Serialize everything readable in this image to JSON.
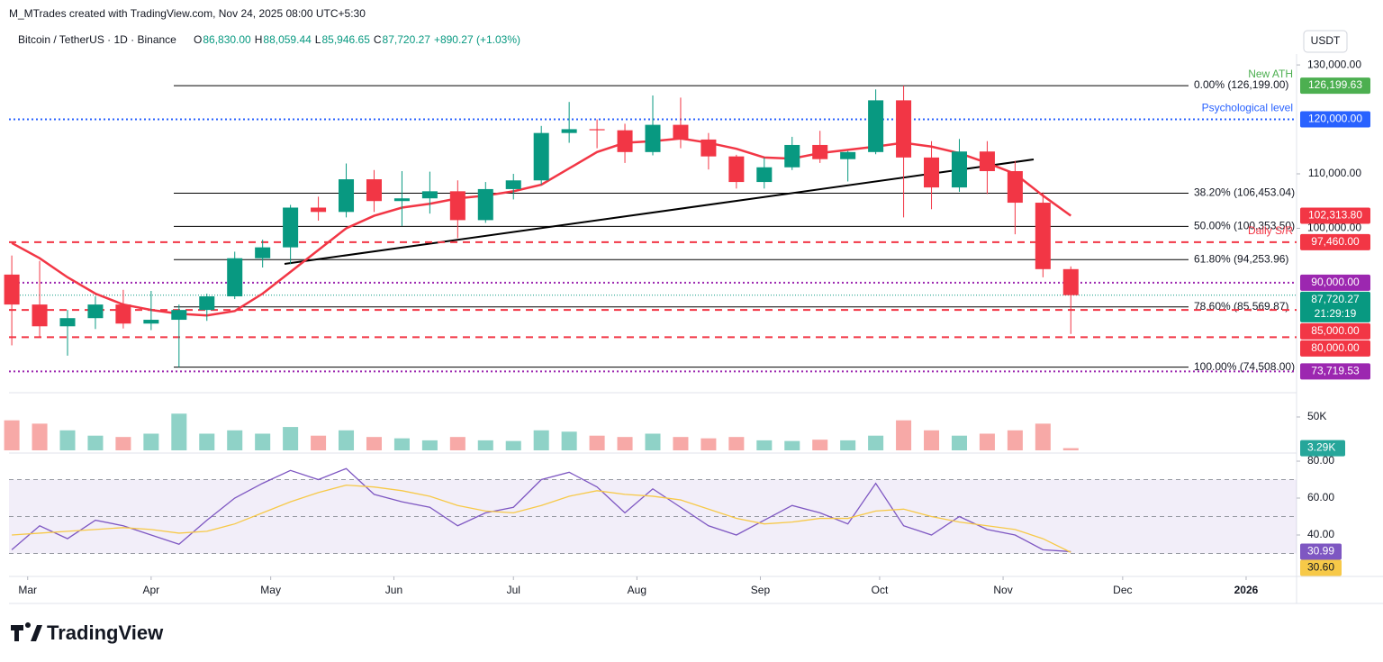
{
  "header": {
    "credit": "M_MTrades created with TradingView.com, Nov 24, 2025 08:00 UTC+5:30",
    "symbol": "Bitcoin / TetherUS · 1D · Binance",
    "ohlc": [
      {
        "key": "O",
        "value": "86,830.00"
      },
      {
        "key": "H",
        "value": "88,059.44"
      },
      {
        "key": "L",
        "value": "85,946.65"
      },
      {
        "key": "C",
        "value": "87,720.27"
      }
    ],
    "change": "+890.27 (+1.03%)",
    "currency": "USDT",
    "logo": "TradingView"
  },
  "chart_data": [
    {
      "type": "candlestick",
      "up_color": "#089981",
      "down_color": "#f23645",
      "open": [
        91500,
        86000,
        82000,
        83500,
        86000,
        82500,
        83200,
        85000,
        87500,
        94500,
        96500,
        103800,
        103000,
        109000,
        105000,
        105500,
        106800,
        101500,
        107200,
        108800,
        117500,
        118200,
        118000,
        114000,
        119000,
        116300,
        113200,
        108500,
        111200,
        115300,
        112700,
        114000,
        123500,
        113000,
        107500,
        114100,
        110500,
        104700,
        92500
      ],
      "high": [
        95000,
        94000,
        85000,
        87500,
        88700,
        88500,
        86000,
        88000,
        95700,
        97900,
        104300,
        105800,
        111900,
        110700,
        110500,
        110400,
        108800,
        108500,
        110000,
        118800,
        123200,
        120000,
        119200,
        124400,
        124000,
        117500,
        113500,
        113000,
        116800,
        117900,
        114200,
        125500,
        126199,
        116000,
        116400,
        116000,
        112400,
        106600,
        93000
      ],
      "low": [
        78500,
        80000,
        76600,
        81500,
        81600,
        81300,
        74508,
        83000,
        87000,
        92800,
        93400,
        101400,
        102000,
        103000,
        100400,
        102700,
        98200,
        101000,
        105300,
        108000,
        115700,
        114700,
        112000,
        113400,
        114700,
        110800,
        107300,
        107300,
        110700,
        112000,
        108600,
        113600,
        102000,
        103500,
        106700,
        106300,
        98900,
        91000,
        80600
      ],
      "close": [
        86000,
        82000,
        83500,
        86000,
        82500,
        83200,
        85000,
        87500,
        94500,
        96500,
        103800,
        103000,
        109000,
        105000,
        105500,
        106800,
        101500,
        107200,
        108800,
        117500,
        118200,
        118000,
        114000,
        119000,
        116300,
        113200,
        108500,
        111200,
        115300,
        112700,
        114000,
        123500,
        113000,
        107500,
        114100,
        110500,
        104700,
        92500,
        87720.27
      ],
      "ma": {
        "color": "#f23645",
        "values": [
          97300,
          94500,
          91000,
          88000,
          86000,
          85000,
          84300,
          84000,
          84800,
          88000,
          92000,
          96000,
          100000,
          102300,
          103800,
          104500,
          105500,
          106000,
          106800,
          108000,
          111000,
          114000,
          115700,
          116000,
          116500,
          115700,
          114600,
          113000,
          112800,
          113800,
          114400,
          115000,
          115700,
          115000,
          113800,
          112000,
          110000,
          106000,
          102313.8
        ]
      },
      "xlim": [
        -0.1,
        46.1
      ],
      "ylim": [
        70800,
        132000
      ],
      "yticks": [
        {
          "value": 130000,
          "label": "130,000.00"
        },
        {
          "value": 110000,
          "label": "110,000.00"
        },
        {
          "value": 100000,
          "label": "100,000.00"
        }
      ],
      "fib": [
        {
          "value": 126199,
          "label": "0.00% (126,199.00)"
        },
        {
          "value": 106453.04,
          "label": "38.20% (106,453.04)"
        },
        {
          "value": 100353.5,
          "label": "50.00% (100,353.50)"
        },
        {
          "value": 94253.96,
          "label": "61.80% (94,253.96)"
        },
        {
          "value": 85569.87,
          "label": "78.60% (85,569.87)"
        },
        {
          "value": 74508,
          "label": "100.00% (74,508.00)"
        }
      ],
      "levels": [
        {
          "value": 126199.63,
          "label": "126,199.63",
          "color": "#4caf50",
          "line": "none",
          "note": "New ATH"
        },
        {
          "value": 120000,
          "label": "120,000.00",
          "color": "#2962ff",
          "line": "dotted",
          "note": "Psychological level"
        },
        {
          "value": 102313.8,
          "label": "102,313.80",
          "color": "#f23645",
          "line": "none"
        },
        {
          "value": 97460,
          "label": "97,460.00",
          "color": "#f23645",
          "line": "dashed",
          "note": "Daily S/R"
        },
        {
          "value": 90000,
          "label": "90,000.00",
          "color": "#9c27b0",
          "line": "dotted"
        },
        {
          "value": 87720.27,
          "label": "87,720.27",
          "sub": "21:29:19",
          "color": "#089981",
          "line": "thin"
        },
        {
          "value": 85000,
          "label": "85,000.00",
          "color": "#f23645",
          "line": "dashed"
        },
        {
          "value": 80000,
          "label": "80,000.00",
          "color": "#f23645",
          "line": "dashed"
        },
        {
          "value": 73719.53,
          "label": "73,719.53",
          "color": "#9c27b0",
          "line": "dotted"
        }
      ]
    },
    {
      "type": "bar",
      "values": [
        45000,
        40000,
        30000,
        22000,
        20000,
        25000,
        55000,
        25000,
        30000,
        25000,
        35000,
        22000,
        30000,
        20000,
        18000,
        15000,
        20000,
        15000,
        14000,
        30000,
        28000,
        22000,
        20000,
        25000,
        20000,
        18000,
        20000,
        15000,
        14000,
        16000,
        15000,
        22000,
        45000,
        30000,
        22000,
        25000,
        30000,
        40000,
        3290
      ],
      "up_color": "#8fd2c7",
      "down_color": "#f7a9a7",
      "ylim": [
        0,
        81000
      ],
      "yticks": [
        {
          "value": 50000,
          "label": "50K"
        }
      ],
      "last_label": "3.29K"
    },
    {
      "type": "line",
      "ylim": [
        19.5,
        84.4
      ],
      "series": [
        {
          "color": "#7e57c2",
          "values": [
            32,
            45,
            38,
            48,
            45,
            40,
            35,
            48,
            60,
            68,
            75,
            70,
            76,
            62,
            58,
            55,
            45,
            52,
            55,
            70,
            74,
            66,
            52,
            65,
            55,
            45,
            40,
            48,
            56,
            52,
            46,
            68,
            45,
            40,
            50,
            43,
            40,
            32,
            30.99
          ],
          "last_label": "30.99"
        },
        {
          "color": "#f7c948",
          "values": [
            40,
            41,
            42,
            43,
            44,
            43,
            41,
            42,
            46,
            52,
            58,
            63,
            67,
            66,
            64,
            61,
            56,
            53,
            52,
            56,
            61,
            64,
            62,
            61,
            59,
            54,
            49,
            46,
            47,
            49,
            49,
            53,
            54,
            50,
            47,
            45,
            43,
            38,
            30.6
          ],
          "last_label": "30.60"
        }
      ],
      "levels": [
        70,
        50,
        30
      ],
      "band": [
        30,
        70
      ],
      "yticks": [
        {
          "value": 80,
          "label": "80.00"
        },
        {
          "value": 60,
          "label": "60.00"
        },
        {
          "value": 40,
          "label": "40.00"
        }
      ],
      "xticks": [
        {
          "value": 0.57,
          "label": "Mar"
        },
        {
          "value": 5,
          "label": "Apr"
        },
        {
          "value": 9.29,
          "label": "May"
        },
        {
          "value": 13.71,
          "label": "Jun"
        },
        {
          "value": 18,
          "label": "Jul"
        },
        {
          "value": 22.43,
          "label": "Aug"
        },
        {
          "value": 26.86,
          "label": "Sep"
        },
        {
          "value": 31.14,
          "label": "Oct"
        },
        {
          "value": 35.57,
          "label": "Nov"
        },
        {
          "value": 39.86,
          "label": "Dec"
        },
        {
          "value": 44.29,
          "label": "2026"
        }
      ]
    }
  ]
}
